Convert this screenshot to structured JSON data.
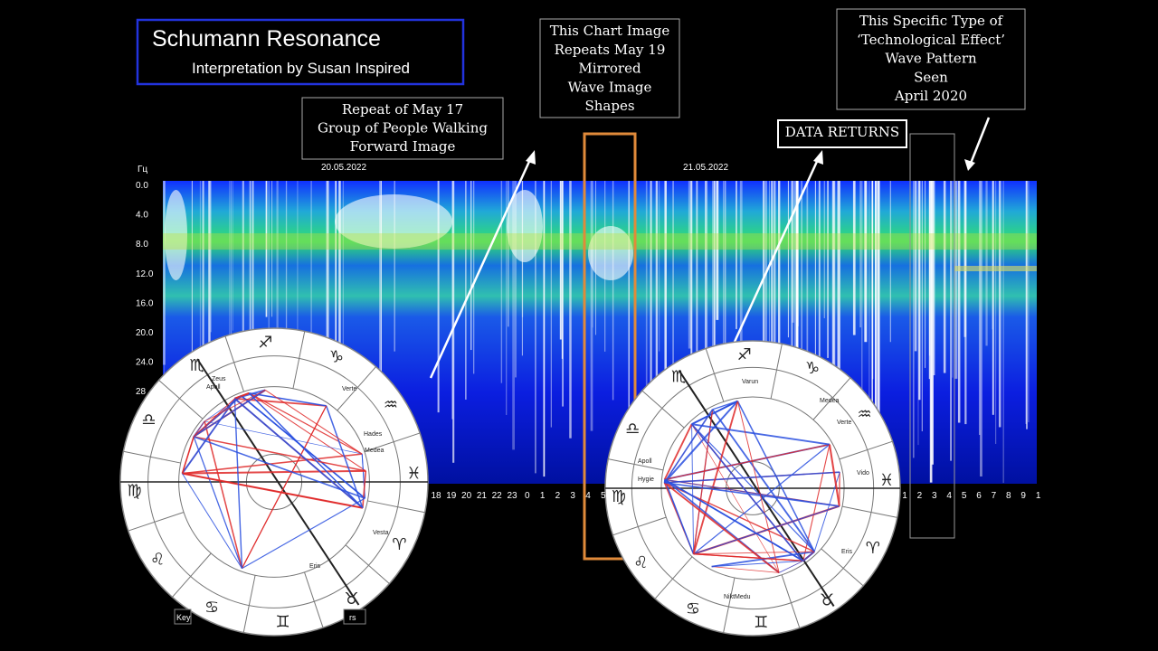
{
  "header": {
    "title": "Schumann Resonance",
    "subtitle": "Interpretation by Susan Inspired"
  },
  "annotations": {
    "walking": [
      "Repeat of May 17",
      "Group of People Walking",
      "Forward Image"
    ],
    "mirrored": [
      "This Chart Image",
      "Repeats May 19",
      "Mirrored",
      "Wave Image",
      "Shapes"
    ],
    "data_returns": "DATA RETURNS",
    "technological": [
      "This Specific Type of",
      "‘Technological Effect’",
      "Wave Pattern",
      "Seen",
      "April 2020"
    ]
  },
  "spectrogram": {
    "unit": "Гц",
    "dates": [
      "20.05.2022",
      "21.05.2022"
    ],
    "yticks": [
      "0.0",
      "4.0",
      "8.0",
      "12.0",
      "16.0",
      "20.0",
      "24.0",
      "28"
    ],
    "xticks_left": [
      "18",
      "19",
      "20",
      "21",
      "22",
      "23",
      "0",
      "1",
      "2",
      "3",
      "4",
      "5"
    ],
    "xticks_right": [
      "1",
      "2",
      "3",
      "4",
      "5",
      "6",
      "7",
      "8",
      "9",
      "1"
    ]
  },
  "left_wheel": {
    "labels": [
      "Zeus",
      "Apoll",
      "Hades",
      "Medea",
      "Vesta",
      "Eris",
      "Verte"
    ],
    "footer": [
      "Key",
      "rs"
    ]
  },
  "right_wheel": {
    "labels": [
      "Varun",
      "Medea",
      "Apoll",
      "Hygie",
      "Verte",
      "Vido",
      "Eris",
      "NiktMedu"
    ]
  }
}
